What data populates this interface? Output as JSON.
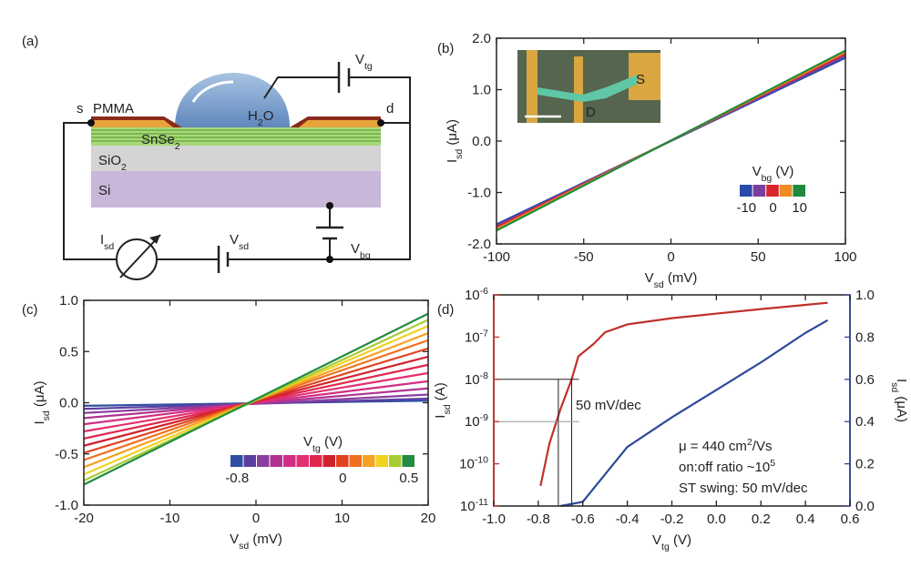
{
  "diagram": {
    "panel_label": "(a)",
    "labels": {
      "pmma": "PMMA",
      "source": "s",
      "drain": "d",
      "water": [
        "H",
        {
          "sub": "2"
        },
        "O"
      ],
      "snse2": [
        "SnSe",
        {
          "sub": "2"
        }
      ],
      "sio2": [
        "SiO",
        {
          "sub": "2"
        }
      ],
      "si": "Si",
      "isd": [
        "I",
        {
          "sub": "sd"
        }
      ],
      "vsd": [
        "V",
        {
          "sub": "sd"
        }
      ],
      "vbg": [
        "V",
        {
          "sub": "bg"
        }
      ],
      "vtg": [
        "V",
        {
          "sub": "tg"
        }
      ]
    }
  },
  "chart_data": [
    {
      "type": "line",
      "panel_label": "(b)",
      "x": [
        -100,
        100
      ],
      "series": [
        {
          "name": "-10",
          "color": "#2b4aa8",
          "values": [
            -1.62,
            1.62
          ]
        },
        {
          "name": null,
          "color": "#7a3f9e",
          "values": [
            -1.65,
            1.66
          ]
        },
        {
          "name": "0",
          "color": "#d8262e",
          "values": [
            -1.68,
            1.7
          ]
        },
        {
          "name": null,
          "color": "#f08a24",
          "values": [
            -1.71,
            1.73
          ]
        },
        {
          "name": "10",
          "color": "#1f8a3c",
          "values": [
            -1.74,
            1.76
          ]
        }
      ],
      "xlim": [
        -100,
        100
      ],
      "xticks": [
        -100,
        -50,
        0,
        50,
        100
      ],
      "ylim": [
        -2,
        2
      ],
      "yticks": [
        {
          "value": -2,
          "label": "-2.0"
        },
        {
          "value": -1,
          "label": "-1.0"
        },
        {
          "value": 0,
          "label": "0.0"
        },
        {
          "value": 1,
          "label": "1.0"
        },
        {
          "value": 2,
          "label": "2.0"
        }
      ],
      "x_label": [
        "V",
        {
          "sub": "sd"
        },
        " (mV)"
      ],
      "y_label": [
        "I",
        {
          "sub": "sd"
        },
        " (μA)"
      ],
      "legend": "lower right",
      "legend_title": [
        "V",
        {
          "sub": "bg"
        },
        " (V)"
      ],
      "inset_labels": {
        "source": "S",
        "drain": "D"
      }
    },
    {
      "type": "line",
      "panel_label": "(c)",
      "x": [
        -20,
        20
      ],
      "series": [
        {
          "name": "-0.8",
          "color": "#2f4fa2",
          "values": [
            -0.03,
            0.02
          ]
        },
        {
          "name": null,
          "color": "#5b3fa0",
          "values": [
            -0.06,
            0.04
          ]
        },
        {
          "name": null,
          "color": "#8a3fa0",
          "values": [
            -0.1,
            0.08
          ]
        },
        {
          "name": null,
          "color": "#b0338f",
          "values": [
            -0.15,
            0.14
          ]
        },
        {
          "name": null,
          "color": "#d12f84",
          "values": [
            -0.21,
            0.21
          ]
        },
        {
          "name": null,
          "color": "#e22f70",
          "values": [
            -0.28,
            0.29
          ]
        },
        {
          "name": null,
          "color": "#e0284f",
          "values": [
            -0.35,
            0.37
          ]
        },
        {
          "name": null,
          "color": "#d0222e",
          "values": [
            -0.42,
            0.45
          ]
        },
        {
          "name": "0",
          "color": "#e2421f",
          "values": [
            -0.49,
            0.53
          ]
        },
        {
          "name": null,
          "color": "#f07020",
          "values": [
            -0.56,
            0.61
          ]
        },
        {
          "name": null,
          "color": "#f5a122",
          "values": [
            -0.63,
            0.68
          ]
        },
        {
          "name": null,
          "color": "#f0d21f",
          "values": [
            -0.7,
            0.75
          ]
        },
        {
          "name": null,
          "color": "#a9cc34",
          "values": [
            -0.76,
            0.81
          ]
        },
        {
          "name": "0.5",
          "color": "#238d40",
          "values": [
            -0.8,
            0.87
          ]
        }
      ],
      "xlim": [
        -20,
        20
      ],
      "xticks": [
        -20,
        -10,
        0,
        10,
        20
      ],
      "ylim": [
        -1,
        1
      ],
      "yticks": [
        {
          "value": -1,
          "label": "-1.0"
        },
        -0.5,
        {
          "value": 0,
          "label": "0.0"
        },
        0.5,
        {
          "value": 1,
          "label": "1.0"
        }
      ],
      "x_label": [
        "V",
        {
          "sub": "sd"
        },
        " (mV)"
      ],
      "y_label": [
        "I",
        {
          "sub": "sd"
        },
        " (μA)"
      ],
      "legend": "lower right",
      "legend_title": [
        "V",
        {
          "sub": "tg"
        },
        " (V)"
      ]
    },
    {
      "type": "line",
      "panel_label": "(d)",
      "series": [
        {
          "color": "#c0302a",
          "x": [
            -0.79,
            -0.75,
            -0.7,
            -0.65,
            -0.62,
            -0.55,
            -0.5,
            -0.4,
            -0.2,
            0,
            0.2,
            0.4,
            0.5
          ],
          "values": [
            3e-11,
            3e-10,
            2e-09,
            1e-08,
            3.5e-08,
            7e-08,
            1.3e-07,
            2e-07,
            2.8e-07,
            3.6e-07,
            4.6e-07,
            5.8e-07,
            6.5e-07
          ]
        },
        {
          "color": "#2d4a9a",
          "axis": "y2",
          "x": [
            -0.7,
            -0.6,
            -0.5,
            -0.4,
            -0.3,
            -0.2,
            0,
            0.2,
            0.4,
            0.5
          ],
          "values": [
            0,
            0.02,
            0.15,
            0.28,
            0.35,
            0.42,
            0.55,
            0.68,
            0.82,
            0.88
          ]
        }
      ],
      "xlim": [
        -1,
        0.6
      ],
      "xticks": [
        {
          "value": -1,
          "label": "-1.0"
        },
        -0.8,
        -0.6,
        -0.4,
        -0.2,
        {
          "value": 0,
          "label": "0.0"
        },
        0.2,
        0.4,
        0.6
      ],
      "ylim": [
        1e-11,
        1e-06
      ],
      "log_y": true,
      "yticks": [
        {
          "value": 1e-11,
          "label": "10",
          "exponent": "-11"
        },
        {
          "value": 1e-10,
          "label": "10",
          "exponent": "-10"
        },
        {
          "value": 1e-09,
          "label": "10",
          "exponent": "-9"
        },
        {
          "value": 1e-08,
          "label": "10",
          "exponent": "-8"
        },
        {
          "value": 1e-07,
          "label": "10",
          "exponent": "-7"
        },
        {
          "value": 1e-06,
          "label": "10",
          "exponent": "-6"
        }
      ],
      "y2lim": [
        0,
        1
      ],
      "y2ticks": [
        {
          "value": 0,
          "label": "0.0"
        },
        0.2,
        0.4,
        0.6,
        0.8,
        {
          "value": 1,
          "label": "1.0"
        }
      ],
      "x_label": [
        "V",
        {
          "sub": "tg"
        },
        " (V)"
      ],
      "y_label": [
        "I",
        {
          "sub": "sd"
        },
        " (A)"
      ],
      "y2_label": [
        "I",
        {
          "sub": "sd"
        },
        " (μA)"
      ],
      "guide_lines": {
        "x": [
          -0.71,
          -0.65
        ],
        "y": [
          1e-08,
          1e-09
        ]
      },
      "annotations": [
        [
          "50 mV/dec"
        ],
        [
          "μ = 440 cm",
          {
            "sup": "2"
          },
          "/Vs"
        ],
        [
          "on:off ratio ~10",
          {
            "sup": "5"
          }
        ],
        [
          "ST swing: 50 mV/dec"
        ]
      ]
    }
  ]
}
